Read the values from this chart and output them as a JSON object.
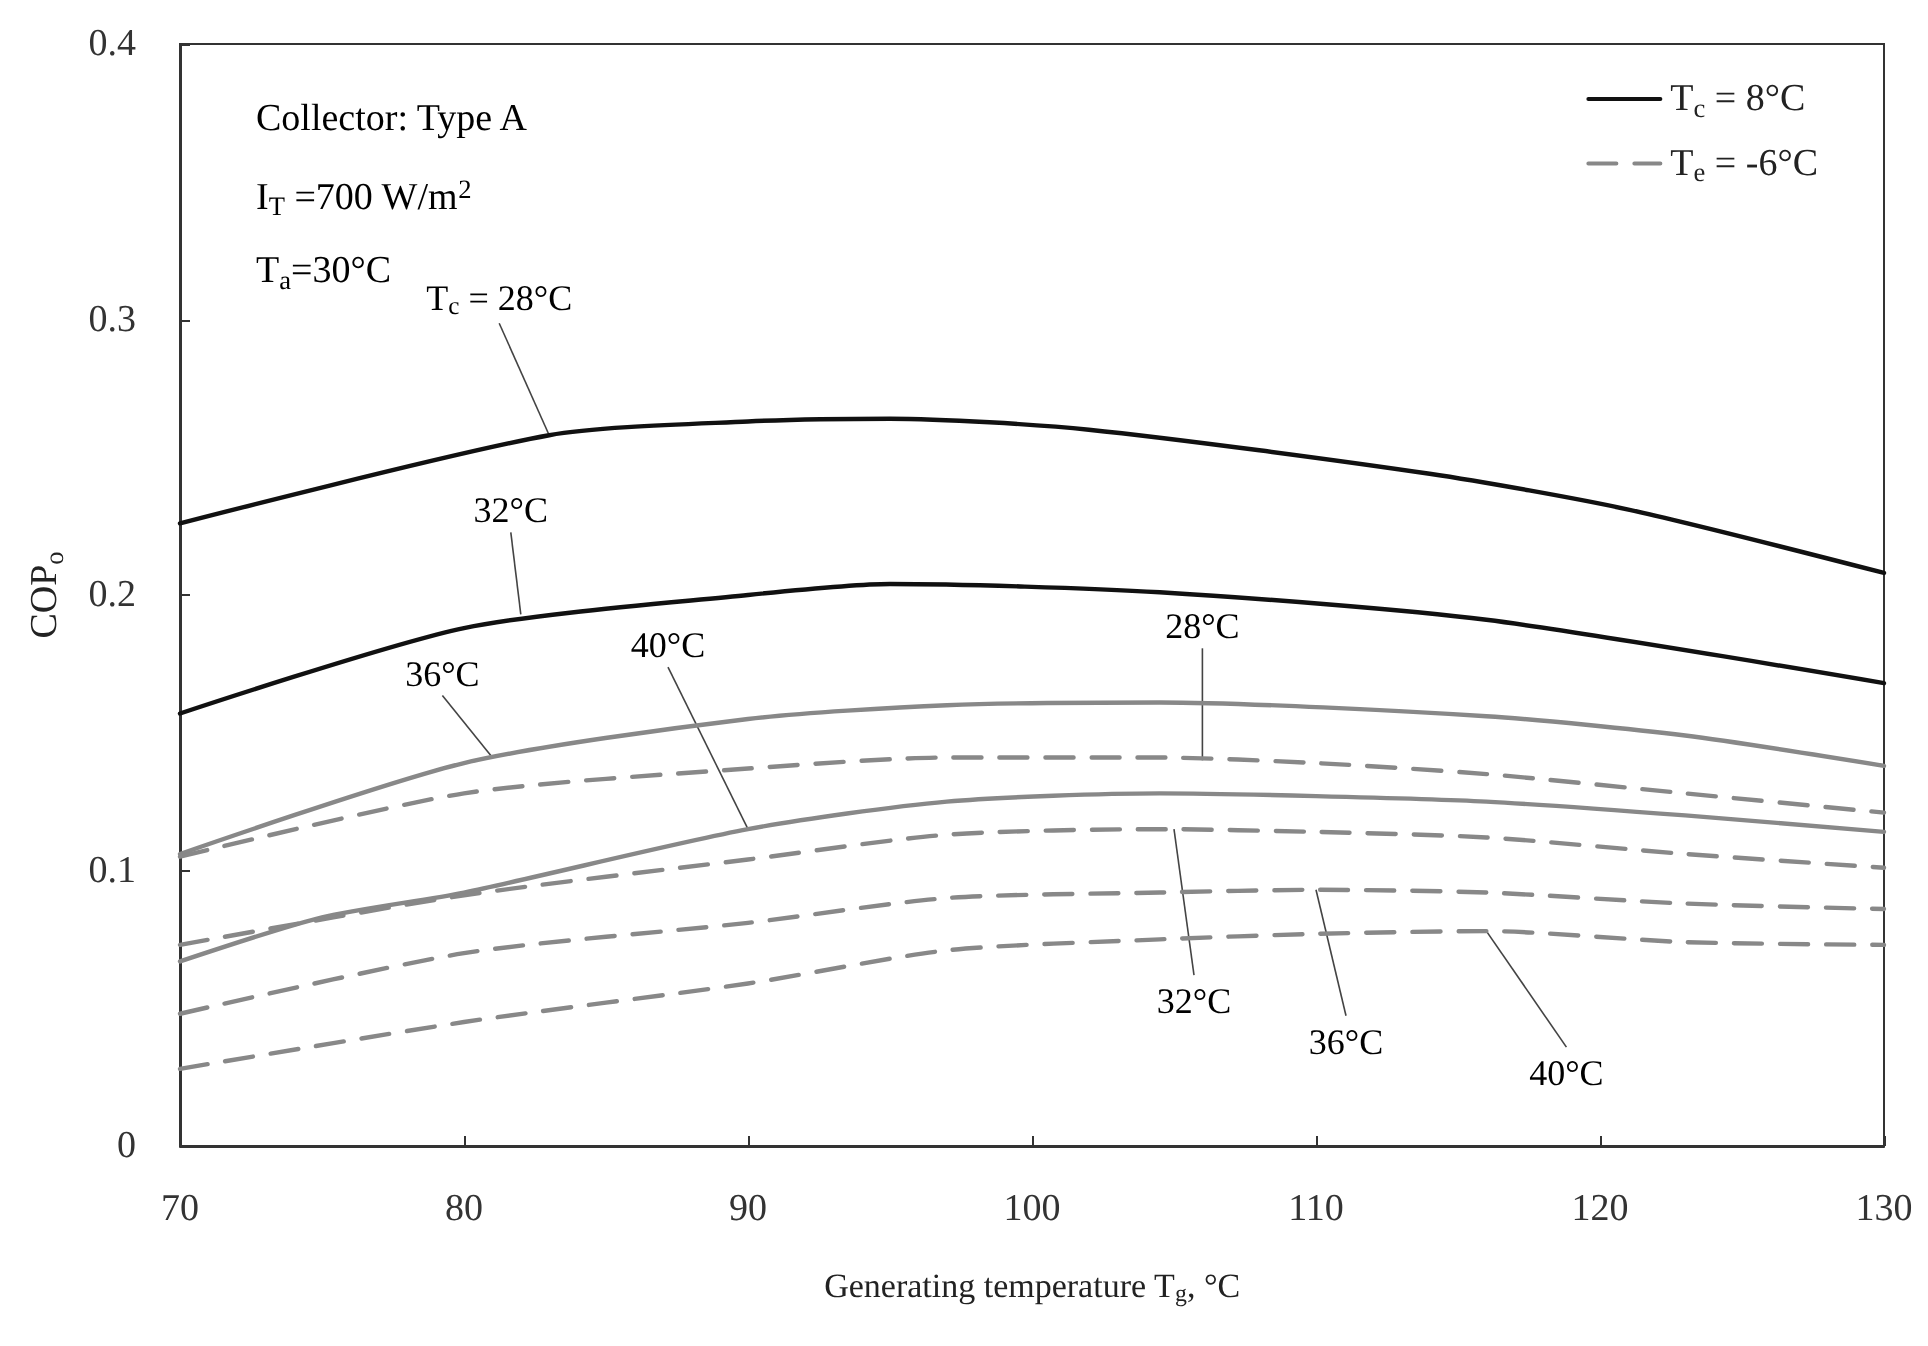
{
  "chart_data": {
    "type": "line",
    "xlabel": "Generating temperature T$_{g}$, °C",
    "ylabel": "COP$_{o}$",
    "x": [
      70,
      75,
      80,
      83,
      90,
      95,
      97,
      102,
      104.5,
      110,
      114,
      116,
      121,
      123,
      130
    ],
    "series": [
      {
        "name": "T$_{c}$ = 8°C",
        "color": "#111111",
        "line_style": "solid",
        "values": [
          0.226,
          null,
          null,
          0.258,
          0.263,
          0.264,
          null,
          0.26,
          null,
          null,
          0.244,
          null,
          0.231,
          null,
          0.208
        ]
      },
      {
        "color": "#111111",
        "line_style": "solid",
        "values": [
          0.157,
          null,
          0.188,
          null,
          0.2,
          0.204,
          null,
          null,
          0.201,
          null,
          null,
          0.191,
          null,
          null,
          0.168
        ]
      },
      {
        "color": "#888888",
        "line_style": "solid",
        "values": [
          0.106,
          null,
          0.139,
          null,
          0.155,
          null,
          0.16,
          null,
          0.161,
          null,
          null,
          0.156,
          null,
          0.149,
          0.138
        ]
      },
      {
        "color": "#888888",
        "line_style": "solid",
        "values": [
          0.067,
          0.083,
          0.092,
          null,
          0.115,
          null,
          0.125,
          null,
          0.128,
          0.127,
          null,
          0.125,
          null,
          0.12,
          0.114
        ]
      },
      {
        "name": "T$_{e}$ = -6°C",
        "color": "#888888",
        "line_style": "dashed",
        "values": [
          0.105,
          null,
          0.128,
          null,
          0.137,
          null,
          0.141,
          null,
          0.141,
          0.139,
          null,
          0.135,
          null,
          0.128,
          0.121
        ]
      },
      {
        "color": "#888888",
        "line_style": "dashed",
        "values": [
          0.073,
          null,
          0.091,
          null,
          0.104,
          null,
          0.113,
          null,
          0.115,
          0.114,
          null,
          0.112,
          null,
          0.106,
          0.101
        ]
      },
      {
        "color": "#888888",
        "line_style": "dashed",
        "values": [
          0.048,
          null,
          0.07,
          null,
          0.081,
          null,
          0.09,
          null,
          0.092,
          0.093,
          null,
          0.092,
          null,
          0.088,
          0.086
        ]
      },
      {
        "color": "#888888",
        "line_style": "dashed",
        "values": [
          0.028,
          null,
          0.045,
          null,
          0.059,
          null,
          0.071,
          null,
          0.075,
          0.077,
          null,
          0.078,
          null,
          0.074,
          0.073
        ]
      }
    ],
    "xlim": [
      70,
      130
    ],
    "xticks": [
      70,
      80,
      90,
      100,
      110,
      120,
      130
    ],
    "ylim": [
      0,
      0.4
    ],
    "yticks": [
      0,
      0.1,
      0.2,
      0.3,
      0.4
    ],
    "grid": false,
    "legend": "top right",
    "marker": "none",
    "annotations": [
      "Collector: Type A",
      "I$_{T}$ =700 W/m$^{2}$",
      "T$_{a}$=30°C",
      {
        "text": "T$_{c}$ = 28°C",
        "x": 83,
        "y": 0.258
      },
      {
        "text": "32°C",
        "x": 82,
        "y": 0.193
      },
      {
        "text": "36°C",
        "x": 81,
        "y": 0.141
      },
      {
        "text": "40°C",
        "x": 90,
        "y": 0.115
      },
      {
        "text": "28°C",
        "x": 106,
        "y": 0.14
      },
      {
        "text": "32°C",
        "x": 105,
        "y": 0.115
      },
      {
        "text": "36°C",
        "x": 110,
        "y": 0.093
      },
      {
        "text": "40°C",
        "x": 116,
        "y": 0.078
      }
    ]
  }
}
